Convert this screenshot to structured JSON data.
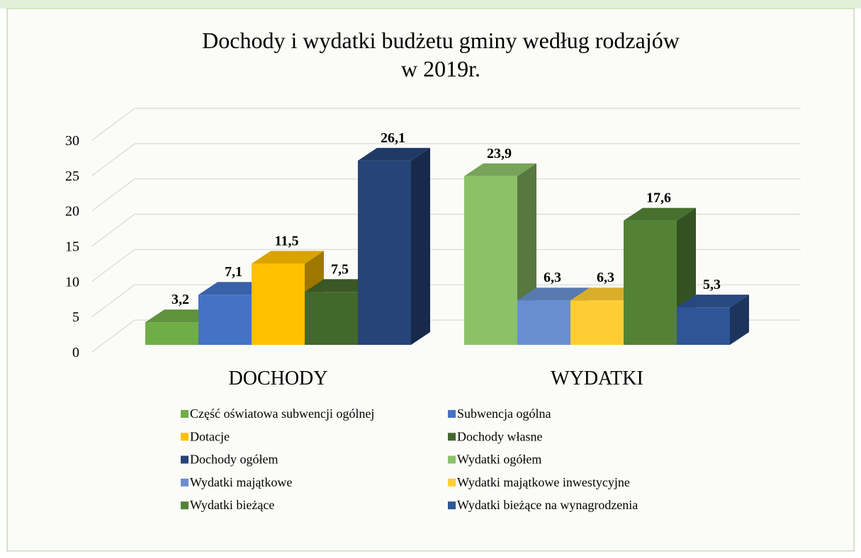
{
  "chart_data": {
    "type": "bar3d",
    "title": [
      "Dochody i wydatki budżetu gminy według rodzajów",
      "w 2019r."
    ],
    "categories": [
      "DOCHODY",
      "WYDATKI"
    ],
    "ylim": [
      0,
      30
    ],
    "yticks": [
      0,
      5,
      10,
      15,
      20,
      25,
      30
    ],
    "grid": true,
    "legend": "bottom",
    "series": [
      {
        "name": "Część oświatowa subwencji ogólnej",
        "color": "#70ad47",
        "values": [
          3.2,
          null
        ],
        "value_labels": [
          "3,2",
          null
        ]
      },
      {
        "name": "Subwencja ogólna",
        "color": "#4472c4",
        "values": [
          7.1,
          null
        ],
        "value_labels": [
          "7,1",
          null
        ]
      },
      {
        "name": "Dotacje",
        "color": "#ffc000",
        "values": [
          11.5,
          null
        ],
        "value_labels": [
          "11,5",
          null
        ]
      },
      {
        "name": "Dochody własne",
        "color": "#43682b",
        "values": [
          7.5,
          null
        ],
        "value_labels": [
          "7,5",
          null
        ]
      },
      {
        "name": "Dochody ogółem",
        "color": "#264478",
        "values": [
          26.1,
          null
        ],
        "value_labels": [
          "26,1",
          null
        ]
      },
      {
        "name": "Wydatki ogółem",
        "color": "#8cc168",
        "values": [
          null,
          23.9
        ],
        "value_labels": [
          null,
          "23,9"
        ]
      },
      {
        "name": "Wydatki majątkowe",
        "color": "#698ed0",
        "values": [
          null,
          6.3
        ],
        "value_labels": [
          null,
          "6,3"
        ]
      },
      {
        "name": "Wydatki majątkowe inwestycyjne",
        "color": "#ffcd33",
        "values": [
          null,
          6.3
        ],
        "value_labels": [
          null,
          "6,3"
        ]
      },
      {
        "name": "Wydatki bieżące",
        "color": "#548235",
        "values": [
          null,
          17.6
        ],
        "value_labels": [
          null,
          "17,6"
        ]
      },
      {
        "name": "Wydatki bieżące na wynagrodzenia",
        "color": "#2f5597",
        "values": [
          null,
          5.3
        ],
        "value_labels": [
          null,
          "5,3"
        ]
      }
    ]
  }
}
